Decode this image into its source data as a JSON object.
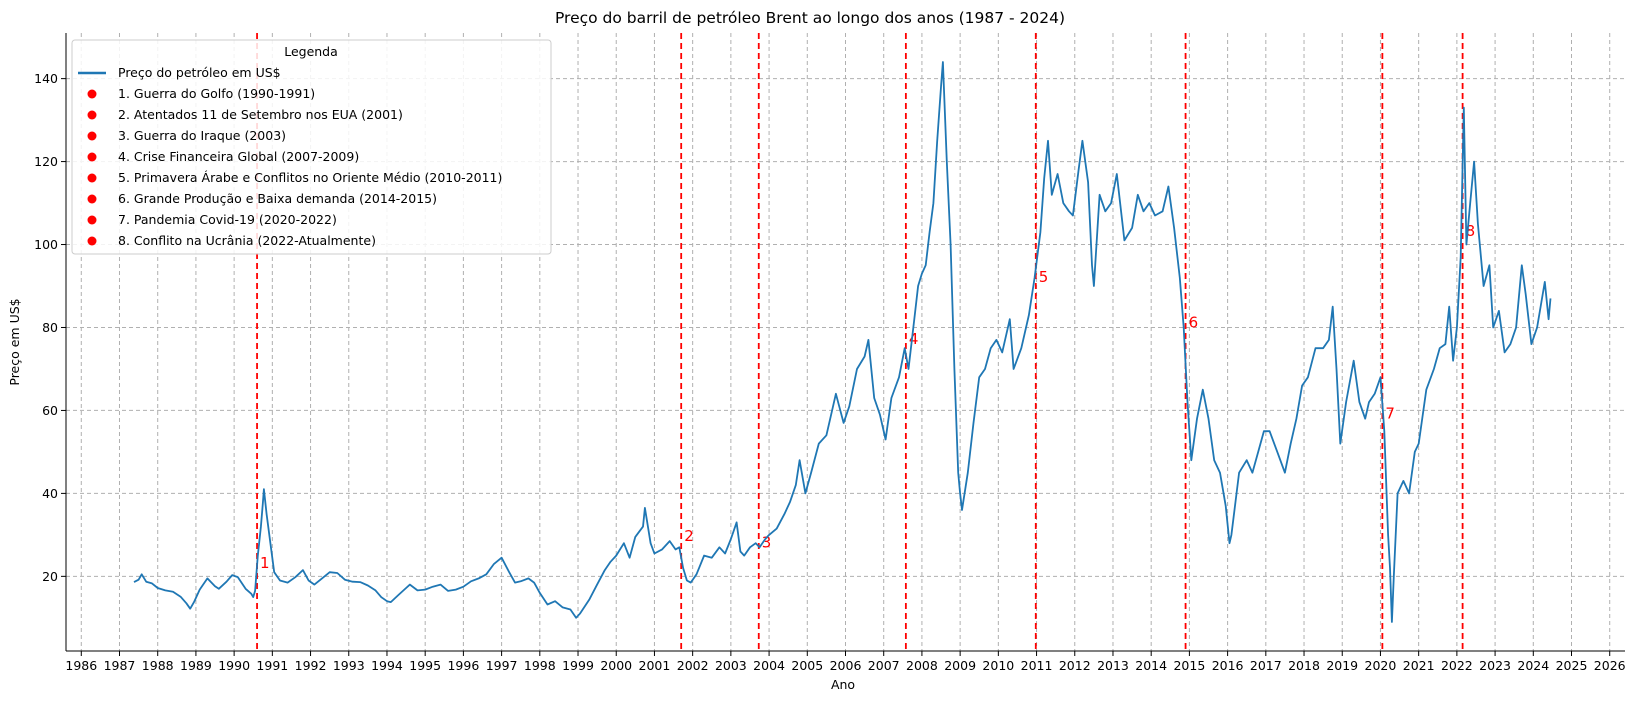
{
  "chart_data": {
    "type": "line",
    "title": "Preço do barril de petróleo Brent ao longo dos anos (1987 - 2024)",
    "xlabel": "Ano",
    "ylabel": "Preço em US$",
    "xlim": [
      1985.6,
      2026.4
    ],
    "ylim": [
      2,
      151
    ],
    "grid": true,
    "legend_placement": "top-left",
    "legend_title": "Legenda",
    "x_ticks": [
      1986,
      1987,
      1988,
      1989,
      1990,
      1991,
      1992,
      1993,
      1994,
      1995,
      1996,
      1997,
      1998,
      1999,
      2000,
      2001,
      2002,
      2003,
      2004,
      2005,
      2006,
      2007,
      2008,
      2009,
      2010,
      2011,
      2012,
      2013,
      2014,
      2015,
      2016,
      2017,
      2018,
      2019,
      2020,
      2021,
      2022,
      2023,
      2024,
      2025,
      2026
    ],
    "y_ticks": [
      20,
      40,
      60,
      80,
      100,
      120,
      140
    ],
    "series": [
      {
        "name": "Preço do petróleo em US$",
        "color": "#1f77b4",
        "points": [
          [
            1987.38,
            18.6
          ],
          [
            1987.5,
            19.2
          ],
          [
            1987.58,
            20.5
          ],
          [
            1987.7,
            18.7
          ],
          [
            1987.85,
            18.3
          ],
          [
            1988.0,
            17.2
          ],
          [
            1988.2,
            16.6
          ],
          [
            1988.4,
            16.3
          ],
          [
            1988.6,
            15.1
          ],
          [
            1988.75,
            13.5
          ],
          [
            1988.85,
            12.2
          ],
          [
            1988.95,
            13.8
          ],
          [
            1989.1,
            16.8
          ],
          [
            1989.3,
            19.5
          ],
          [
            1989.5,
            17.6
          ],
          [
            1989.6,
            17.0
          ],
          [
            1989.8,
            18.7
          ],
          [
            1989.95,
            20.3
          ],
          [
            1990.1,
            19.8
          ],
          [
            1990.3,
            17.0
          ],
          [
            1990.45,
            15.8
          ],
          [
            1990.5,
            15.0
          ],
          [
            1990.55,
            16.5
          ],
          [
            1990.62,
            25.0
          ],
          [
            1990.7,
            32.0
          ],
          [
            1990.75,
            37.5
          ],
          [
            1990.78,
            41.0
          ],
          [
            1990.85,
            35.0
          ],
          [
            1990.95,
            28.0
          ],
          [
            1991.05,
            21.0
          ],
          [
            1991.2,
            19.0
          ],
          [
            1991.4,
            18.5
          ],
          [
            1991.6,
            19.8
          ],
          [
            1991.8,
            21.5
          ],
          [
            1991.95,
            19.0
          ],
          [
            1992.1,
            18.0
          ],
          [
            1992.3,
            19.5
          ],
          [
            1992.5,
            21.0
          ],
          [
            1992.7,
            20.8
          ],
          [
            1992.9,
            19.2
          ],
          [
            1993.1,
            18.7
          ],
          [
            1993.3,
            18.6
          ],
          [
            1993.5,
            17.8
          ],
          [
            1993.7,
            16.6
          ],
          [
            1993.85,
            15.0
          ],
          [
            1994.0,
            14.0
          ],
          [
            1994.1,
            13.8
          ],
          [
            1994.3,
            15.5
          ],
          [
            1994.5,
            17.2
          ],
          [
            1994.6,
            18.0
          ],
          [
            1994.8,
            16.6
          ],
          [
            1995.0,
            16.8
          ],
          [
            1995.2,
            17.5
          ],
          [
            1995.4,
            18.0
          ],
          [
            1995.6,
            16.5
          ],
          [
            1995.8,
            16.8
          ],
          [
            1996.0,
            17.5
          ],
          [
            1996.2,
            18.8
          ],
          [
            1996.4,
            19.5
          ],
          [
            1996.6,
            20.5
          ],
          [
            1996.8,
            23.0
          ],
          [
            1997.0,
            24.5
          ],
          [
            1997.2,
            21.0
          ],
          [
            1997.35,
            18.5
          ],
          [
            1997.5,
            18.8
          ],
          [
            1997.7,
            19.5
          ],
          [
            1997.85,
            18.5
          ],
          [
            1998.0,
            16.0
          ],
          [
            1998.2,
            13.2
          ],
          [
            1998.4,
            14.0
          ],
          [
            1998.6,
            12.5
          ],
          [
            1998.8,
            12.0
          ],
          [
            1998.95,
            10.0
          ],
          [
            1999.05,
            11.0
          ],
          [
            1999.3,
            14.5
          ],
          [
            1999.5,
            18.0
          ],
          [
            1999.7,
            21.5
          ],
          [
            1999.85,
            23.5
          ],
          [
            2000.0,
            25.0
          ],
          [
            2000.2,
            28.0
          ],
          [
            2000.35,
            24.5
          ],
          [
            2000.5,
            29.5
          ],
          [
            2000.7,
            32.0
          ],
          [
            2000.75,
            36.5
          ],
          [
            2000.9,
            28.0
          ],
          [
            2001.0,
            25.5
          ],
          [
            2001.2,
            26.5
          ],
          [
            2001.4,
            28.5
          ],
          [
            2001.55,
            26.5
          ],
          [
            2001.65,
            27.0
          ],
          [
            2001.75,
            22.0
          ],
          [
            2001.85,
            19.0
          ],
          [
            2001.95,
            18.5
          ],
          [
            2002.1,
            20.5
          ],
          [
            2002.3,
            25.0
          ],
          [
            2002.5,
            24.5
          ],
          [
            2002.7,
            27.0
          ],
          [
            2002.85,
            25.5
          ],
          [
            2003.0,
            29.0
          ],
          [
            2003.15,
            33.0
          ],
          [
            2003.25,
            26.0
          ],
          [
            2003.35,
            25.0
          ],
          [
            2003.5,
            27.0
          ],
          [
            2003.65,
            28.0
          ],
          [
            2003.75,
            27.0
          ],
          [
            2003.9,
            29.0
          ],
          [
            2004.0,
            30.0
          ],
          [
            2004.2,
            31.5
          ],
          [
            2004.4,
            35.0
          ],
          [
            2004.55,
            38.0
          ],
          [
            2004.7,
            42.0
          ],
          [
            2004.8,
            48.0
          ],
          [
            2004.95,
            40.0
          ],
          [
            2005.1,
            45.0
          ],
          [
            2005.3,
            52.0
          ],
          [
            2005.5,
            54.0
          ],
          [
            2005.65,
            60.0
          ],
          [
            2005.75,
            64.0
          ],
          [
            2005.95,
            57.0
          ],
          [
            2006.1,
            61.0
          ],
          [
            2006.3,
            70.0
          ],
          [
            2006.5,
            73.0
          ],
          [
            2006.6,
            77.0
          ],
          [
            2006.75,
            63.0
          ],
          [
            2006.9,
            59.0
          ],
          [
            2007.05,
            53.0
          ],
          [
            2007.2,
            63.0
          ],
          [
            2007.4,
            68.0
          ],
          [
            2007.55,
            75.0
          ],
          [
            2007.65,
            70.0
          ],
          [
            2007.8,
            82.0
          ],
          [
            2007.9,
            90.0
          ],
          [
            2008.0,
            93.0
          ],
          [
            2008.1,
            95.0
          ],
          [
            2008.2,
            103.0
          ],
          [
            2008.3,
            110.0
          ],
          [
            2008.4,
            125.0
          ],
          [
            2008.5,
            138.0
          ],
          [
            2008.55,
            144.0
          ],
          [
            2008.65,
            120.0
          ],
          [
            2008.75,
            100.0
          ],
          [
            2008.85,
            70.0
          ],
          [
            2008.95,
            45.0
          ],
          [
            2009.0,
            40.0
          ],
          [
            2009.05,
            36.0
          ],
          [
            2009.2,
            45.0
          ],
          [
            2009.35,
            57.0
          ],
          [
            2009.5,
            68.0
          ],
          [
            2009.65,
            70.0
          ],
          [
            2009.8,
            75.0
          ],
          [
            2009.95,
            77.0
          ],
          [
            2010.1,
            74.0
          ],
          [
            2010.3,
            82.0
          ],
          [
            2010.4,
            70.0
          ],
          [
            2010.6,
            75.0
          ],
          [
            2010.8,
            83.0
          ],
          [
            2010.95,
            92.0
          ],
          [
            2011.1,
            103.0
          ],
          [
            2011.2,
            116.0
          ],
          [
            2011.3,
            125.0
          ],
          [
            2011.4,
            112.0
          ],
          [
            2011.55,
            117.0
          ],
          [
            2011.7,
            110.0
          ],
          [
            2011.85,
            108.0
          ],
          [
            2011.95,
            107.0
          ],
          [
            2012.1,
            118.0
          ],
          [
            2012.2,
            125.0
          ],
          [
            2012.35,
            115.0
          ],
          [
            2012.45,
            95.0
          ],
          [
            2012.5,
            90.0
          ],
          [
            2012.65,
            112.0
          ],
          [
            2012.8,
            108.0
          ],
          [
            2012.95,
            110.0
          ],
          [
            2013.1,
            117.0
          ],
          [
            2013.3,
            101.0
          ],
          [
            2013.5,
            104.0
          ],
          [
            2013.65,
            112.0
          ],
          [
            2013.8,
            108.0
          ],
          [
            2013.95,
            110.0
          ],
          [
            2014.1,
            107.0
          ],
          [
            2014.3,
            108.0
          ],
          [
            2014.45,
            114.0
          ],
          [
            2014.6,
            104.0
          ],
          [
            2014.75,
            92.0
          ],
          [
            2014.85,
            80.0
          ],
          [
            2014.95,
            62.0
          ],
          [
            2015.05,
            48.0
          ],
          [
            2015.2,
            58.0
          ],
          [
            2015.35,
            65.0
          ],
          [
            2015.5,
            58.0
          ],
          [
            2015.65,
            48.0
          ],
          [
            2015.8,
            45.0
          ],
          [
            2015.95,
            37.0
          ],
          [
            2016.05,
            28.0
          ],
          [
            2016.1,
            30.0
          ],
          [
            2016.3,
            45.0
          ],
          [
            2016.5,
            48.0
          ],
          [
            2016.65,
            45.0
          ],
          [
            2016.8,
            50.0
          ],
          [
            2016.95,
            55.0
          ],
          [
            2017.1,
            55.0
          ],
          [
            2017.3,
            50.0
          ],
          [
            2017.5,
            45.0
          ],
          [
            2017.65,
            52.0
          ],
          [
            2017.8,
            58.0
          ],
          [
            2017.95,
            66.0
          ],
          [
            2018.1,
            68.0
          ],
          [
            2018.3,
            75.0
          ],
          [
            2018.5,
            75.0
          ],
          [
            2018.65,
            77.0
          ],
          [
            2018.75,
            85.0
          ],
          [
            2018.85,
            70.0
          ],
          [
            2018.95,
            52.0
          ],
          [
            2019.1,
            62.0
          ],
          [
            2019.3,
            72.0
          ],
          [
            2019.45,
            62.0
          ],
          [
            2019.6,
            58.0
          ],
          [
            2019.7,
            62.0
          ],
          [
            2019.85,
            64.0
          ],
          [
            2020.0,
            68.0
          ],
          [
            2020.1,
            55.0
          ],
          [
            2020.2,
            30.0
          ],
          [
            2020.25,
            22.0
          ],
          [
            2020.3,
            9.0
          ],
          [
            2020.35,
            20.0
          ],
          [
            2020.45,
            40.0
          ],
          [
            2020.6,
            43.0
          ],
          [
            2020.75,
            40.0
          ],
          [
            2020.9,
            50.0
          ],
          [
            2021.0,
            52.0
          ],
          [
            2021.2,
            65.0
          ],
          [
            2021.4,
            70.0
          ],
          [
            2021.55,
            75.0
          ],
          [
            2021.7,
            76.0
          ],
          [
            2021.8,
            85.0
          ],
          [
            2021.9,
            72.0
          ],
          [
            2022.0,
            80.0
          ],
          [
            2022.1,
            97.0
          ],
          [
            2022.18,
            133.0
          ],
          [
            2022.25,
            100.0
          ],
          [
            2022.35,
            110.0
          ],
          [
            2022.45,
            120.0
          ],
          [
            2022.55,
            105.0
          ],
          [
            2022.7,
            90.0
          ],
          [
            2022.85,
            95.0
          ],
          [
            2022.95,
            80.0
          ],
          [
            2023.1,
            84.0
          ],
          [
            2023.25,
            74.0
          ],
          [
            2023.4,
            76.0
          ],
          [
            2023.55,
            80.0
          ],
          [
            2023.7,
            95.0
          ],
          [
            2023.8,
            88.0
          ],
          [
            2023.95,
            76.0
          ],
          [
            2024.1,
            80.0
          ],
          [
            2024.3,
            91.0
          ],
          [
            2024.4,
            82.0
          ],
          [
            2024.45,
            87.0
          ]
        ]
      }
    ],
    "events": [
      {
        "label": "1",
        "legend": "1. Guerra do Golfo (1990-1991)",
        "x": 1990.6,
        "y": 22.0,
        "color": "#ff0000"
      },
      {
        "label": "2",
        "legend": "2. Atentados 11 de Setembro nos EUA (2001)",
        "x": 2001.7,
        "y": 28.5,
        "color": "#ff0000"
      },
      {
        "label": "3",
        "legend": "3. Guerra do Iraque (2003)",
        "x": 2003.73,
        "y": 27.0,
        "color": "#ff0000"
      },
      {
        "label": "4",
        "legend": "4. Crise Financeira Global (2007-2009)",
        "x": 2007.58,
        "y": 76.0,
        "color": "#ff0000"
      },
      {
        "label": "5",
        "legend": "5. Primavera Árabe e Conflitos no Oriente Médio (2010-2011)",
        "x": 2010.98,
        "y": 91.0,
        "color": "#ff0000"
      },
      {
        "label": "6",
        "legend": "6. Grande Produção e Baixa demanda (2014-2015)",
        "x": 2014.9,
        "y": 80.0,
        "color": "#ff0000"
      },
      {
        "label": "7",
        "legend": "7. Pandemia Covid-19 (2020-2022)",
        "x": 2020.05,
        "y": 58.0,
        "color": "#ff0000"
      },
      {
        "label": "8",
        "legend": "8. Conflito na Ucrânia (2022-Atualmente)",
        "x": 2022.15,
        "y": 102.0,
        "color": "#ff0000"
      }
    ]
  }
}
